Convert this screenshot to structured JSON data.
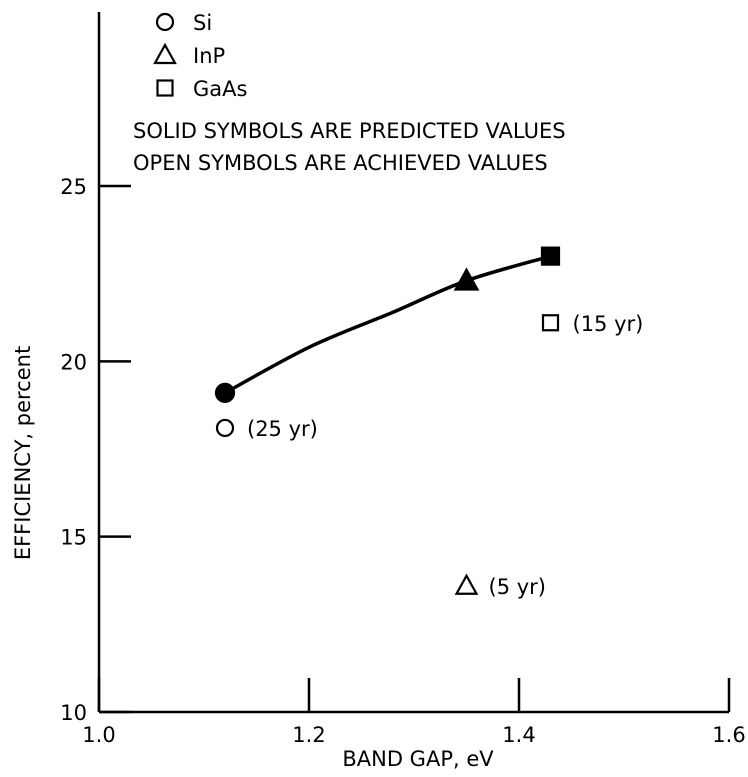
{
  "chart_data": {
    "type": "scatter",
    "xlabel": "BAND GAP, eV",
    "ylabel": "EFFICIENCY, percent",
    "xlim": [
      1.0,
      1.6
    ],
    "ylim": [
      10,
      25
    ],
    "x_ticks": [
      "1.0",
      "1.2",
      "1.4",
      "1.6"
    ],
    "x_tick_values": [
      1.0,
      1.2,
      1.4,
      1.6
    ],
    "y_ticks": [
      "10",
      "15",
      "20",
      "25"
    ],
    "y_tick_values": [
      10,
      15,
      20,
      25
    ],
    "grid": false,
    "legend": {
      "placement": "top-left",
      "entries": [
        {
          "label": "Si",
          "marker": "circle"
        },
        {
          "label": "InP",
          "marker": "triangle"
        },
        {
          "label": "GaAs",
          "marker": "square"
        }
      ]
    },
    "notes": [
      "SOLID SYMBOLS ARE PREDICTED VALUES",
      "OPEN SYMBOLS ARE ACHIEVED VALUES"
    ],
    "series": [
      {
        "name": "Si",
        "marker": "circle",
        "predicted": {
          "x": 1.12,
          "y": 19.1
        },
        "achieved": {
          "x": 1.12,
          "y": 18.1,
          "label": "(25 yr)"
        }
      },
      {
        "name": "InP",
        "marker": "triangle",
        "predicted": {
          "x": 1.35,
          "y": 22.3
        },
        "achieved": {
          "x": 1.35,
          "y": 13.6,
          "label": "(5 yr)"
        }
      },
      {
        "name": "GaAs",
        "marker": "square",
        "predicted": {
          "x": 1.43,
          "y": 23.0
        },
        "achieved": {
          "x": 1.43,
          "y": 21.1,
          "label": "(15 yr)"
        }
      }
    ],
    "curve": {
      "type": "line",
      "through": "predicted",
      "x": [
        1.12,
        1.2,
        1.28,
        1.35,
        1.43
      ],
      "y": [
        19.1,
        20.4,
        21.4,
        22.3,
        23.0
      ]
    }
  }
}
